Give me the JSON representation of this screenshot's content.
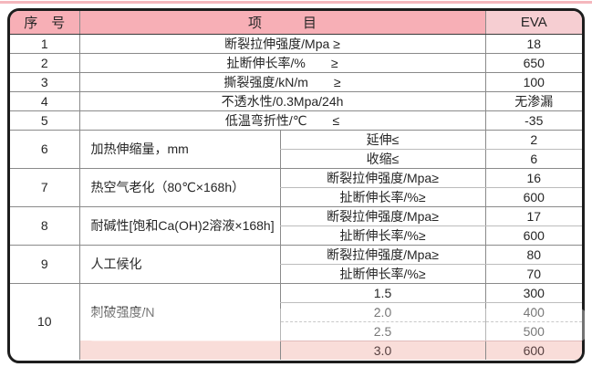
{
  "colors": {
    "page_bg": "#ffffff",
    "top_strip": "#f4b7bd",
    "frame_border": "#1d1d1d",
    "header_bg": "#f7afb6",
    "eva_header_bg": "#f6ced2",
    "highlight_bg": "#f9ddd9",
    "grid_major": "#8a8a8a",
    "grid_minor": "#bcbcbc",
    "text": "#262626",
    "highlight_text": "#574040"
  },
  "table": {
    "headers": {
      "serial": "序　号",
      "item": "项　　　目",
      "eva": "EVA"
    },
    "rows": [
      {
        "no": "1",
        "item": "断裂拉伸强度/Mpa ≥",
        "eva": "18"
      },
      {
        "no": "2",
        "item": "扯断伸长率/%　　≥",
        "eva": "650"
      },
      {
        "no": "3",
        "item": "撕裂强度/kN/m　　≥",
        "eva": "100"
      },
      {
        "no": "4",
        "item": "不透水性/0.3Mpa/24h",
        "eva": "无渗漏"
      },
      {
        "no": "5",
        "item": "低温弯折性/℃　　≤",
        "eva": "-35"
      },
      {
        "no": "6",
        "item": "加热伸缩量，mm",
        "subs": [
          {
            "label": "延伸≤",
            "eva": "2"
          },
          {
            "label": "收缩≤",
            "eva": "6"
          }
        ]
      },
      {
        "no": "7",
        "item": "热空气老化（80℃×168h）",
        "subs": [
          {
            "label": "断裂拉伸强度/Mpa≥",
            "eva": "16"
          },
          {
            "label": "扯断伸长率/%≥",
            "eva": "600"
          }
        ]
      },
      {
        "no": "8",
        "item": "耐碱性[饱和Ca(OH)2溶液×168h]",
        "subs": [
          {
            "label": "断裂拉伸强度/Mpa≥",
            "eva": "17"
          },
          {
            "label": "扯断伸长率/%≥",
            "eva": "600"
          }
        ]
      },
      {
        "no": "9",
        "item": "人工候化",
        "subs": [
          {
            "label": "断裂拉伸强度/Mpa≥",
            "eva": "80"
          },
          {
            "label": "扯断伸长率/%≥",
            "eva": "70"
          }
        ]
      },
      {
        "no": "10",
        "item": "刺破强度/N",
        "subs": [
          {
            "label": "1.5",
            "eva": "300"
          },
          {
            "label": "2.0",
            "eva": "400"
          },
          {
            "label": "2.5",
            "eva": "500"
          },
          {
            "label": "3.0",
            "eva": "600"
          }
        ]
      }
    ]
  }
}
